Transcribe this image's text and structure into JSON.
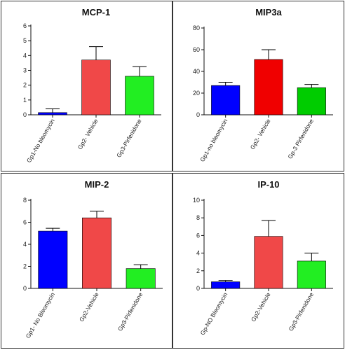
{
  "chart_data": [
    {
      "type": "bar",
      "title": "MCP-1",
      "categories": [
        "Gp1-No bleomycin",
        "Gp2- Vehicle",
        "Gp3-Pirfenidone"
      ],
      "values": [
        0.15,
        3.7,
        2.6
      ],
      "errors": [
        0.25,
        0.9,
        0.65
      ],
      "colors": [
        "#0000ff",
        "#f04848",
        "#22ee22"
      ],
      "ylim": [
        0,
        6
      ],
      "yticks": [
        0,
        1,
        2,
        3,
        4,
        5,
        6
      ]
    },
    {
      "type": "bar",
      "title": "MIP3a",
      "categories": [
        "Gp1-no bleomycin",
        "Gp2- Vehicle",
        "Gp-3 Pirfenidone"
      ],
      "values": [
        27,
        51,
        25
      ],
      "errors": [
        3,
        9,
        3
      ],
      "colors": [
        "#0000ff",
        "#f00000",
        "#00cc00"
      ],
      "ylim": [
        0,
        80
      ],
      "yticks": [
        0,
        20,
        40,
        60,
        80
      ]
    },
    {
      "type": "bar",
      "title": "MIP-2",
      "categories": [
        "Gp1- No Bleomycin",
        "Gp2-Vehicle",
        "Gp3-Pirfenidone"
      ],
      "values": [
        5.2,
        6.4,
        1.8
      ],
      "errors": [
        0.25,
        0.6,
        0.35
      ],
      "colors": [
        "#0000ff",
        "#f04848",
        "#22ee22"
      ],
      "ylim": [
        0,
        8
      ],
      "yticks": [
        0,
        2,
        4,
        6,
        8
      ]
    },
    {
      "type": "bar",
      "title": "IP-10",
      "categories": [
        "Gp-NO Bleomycin",
        "Gp2-Vehicle",
        "Gp3-Pirfenidone"
      ],
      "values": [
        0.75,
        5.9,
        3.1
      ],
      "errors": [
        0.15,
        1.8,
        0.9
      ],
      "colors": [
        "#0000ff",
        "#f04848",
        "#22ee22"
      ],
      "ylim": [
        0,
        10
      ],
      "yticks": [
        0,
        2,
        4,
        6,
        8,
        10
      ]
    }
  ]
}
